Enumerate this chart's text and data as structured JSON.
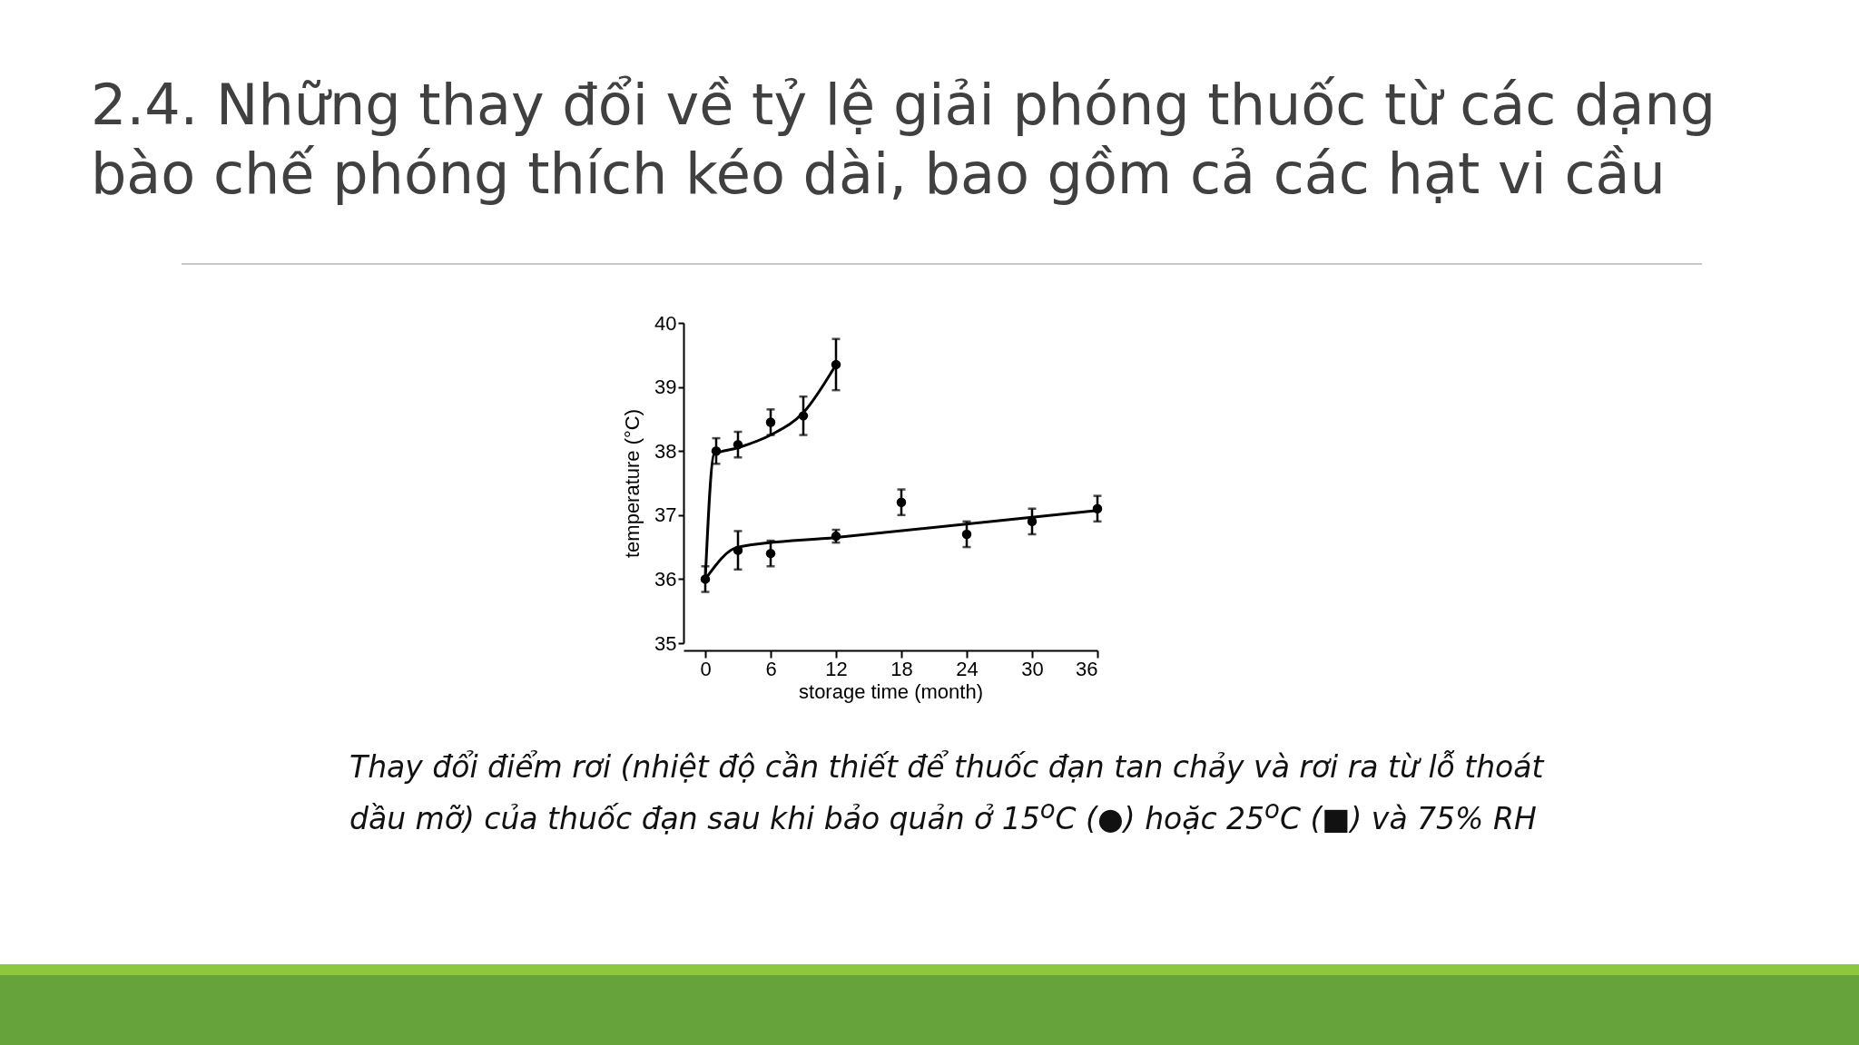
{
  "chart_data": {
    "type": "scatter",
    "title": "2.4. Những thay đổi về tỷ lệ giải phóng thuốc từ các dạng bào chế phóng thích kéo dài, bao gồm cả các hạt vi cầu",
    "xlabel": "storage time (month)",
    "ylabel": "temperature (°C)",
    "annotations": [
      "Thay đổi điểm rơi (nhiệt độ cần thiết để thuốc đạn tan chảy và rơi ra từ lỗ thoát dầu mỡ) của thuốc đạn sau khi bảo quản ở 15$^{o}$C (●) hoặc 25$^{o}$C (■) và 75% RH"
    ],
    "xlim": [
      -2,
      36
    ],
    "xticks": [
      0,
      6,
      12,
      18,
      24,
      30,
      36
    ],
    "ylim": [
      35,
      40
    ],
    "yticks": [
      35,
      36,
      37,
      38,
      39,
      40
    ],
    "line_style": "solid",
    "series": [
      {
        "color": "#000000",
        "marker": "circle",
        "x": [
          0,
          3,
          6,
          12,
          18,
          24,
          30,
          36
        ],
        "values": [
          36.0,
          36.45,
          36.4,
          36.67,
          37.2,
          36.7,
          36.9,
          37.1
        ],
        "errors": [
          0.2,
          0.3,
          0.2,
          0.1,
          0.2,
          0.2,
          0.2,
          0.2
        ]
      },
      {
        "color": "#000000",
        "marker": "circle",
        "x": [
          1,
          3,
          6,
          9,
          12
        ],
        "values": [
          38.0,
          38.1,
          38.45,
          38.55,
          39.35
        ],
        "errors": [
          0.2,
          0.2,
          0.2,
          0.3,
          0.4
        ]
      },
      {
        "type": "line",
        "marker": "none",
        "color": "#000000",
        "x": [
          0,
          3,
          12,
          36
        ],
        "values": [
          36.0,
          36.5,
          36.65,
          37.07
        ]
      },
      {
        "type": "line",
        "marker": "none",
        "color": "#000000",
        "x": [
          0,
          0.8,
          3,
          6,
          9,
          12
        ],
        "values": [
          36.0,
          37.95,
          38.05,
          38.25,
          38.6,
          39.35
        ]
      }
    ]
  }
}
